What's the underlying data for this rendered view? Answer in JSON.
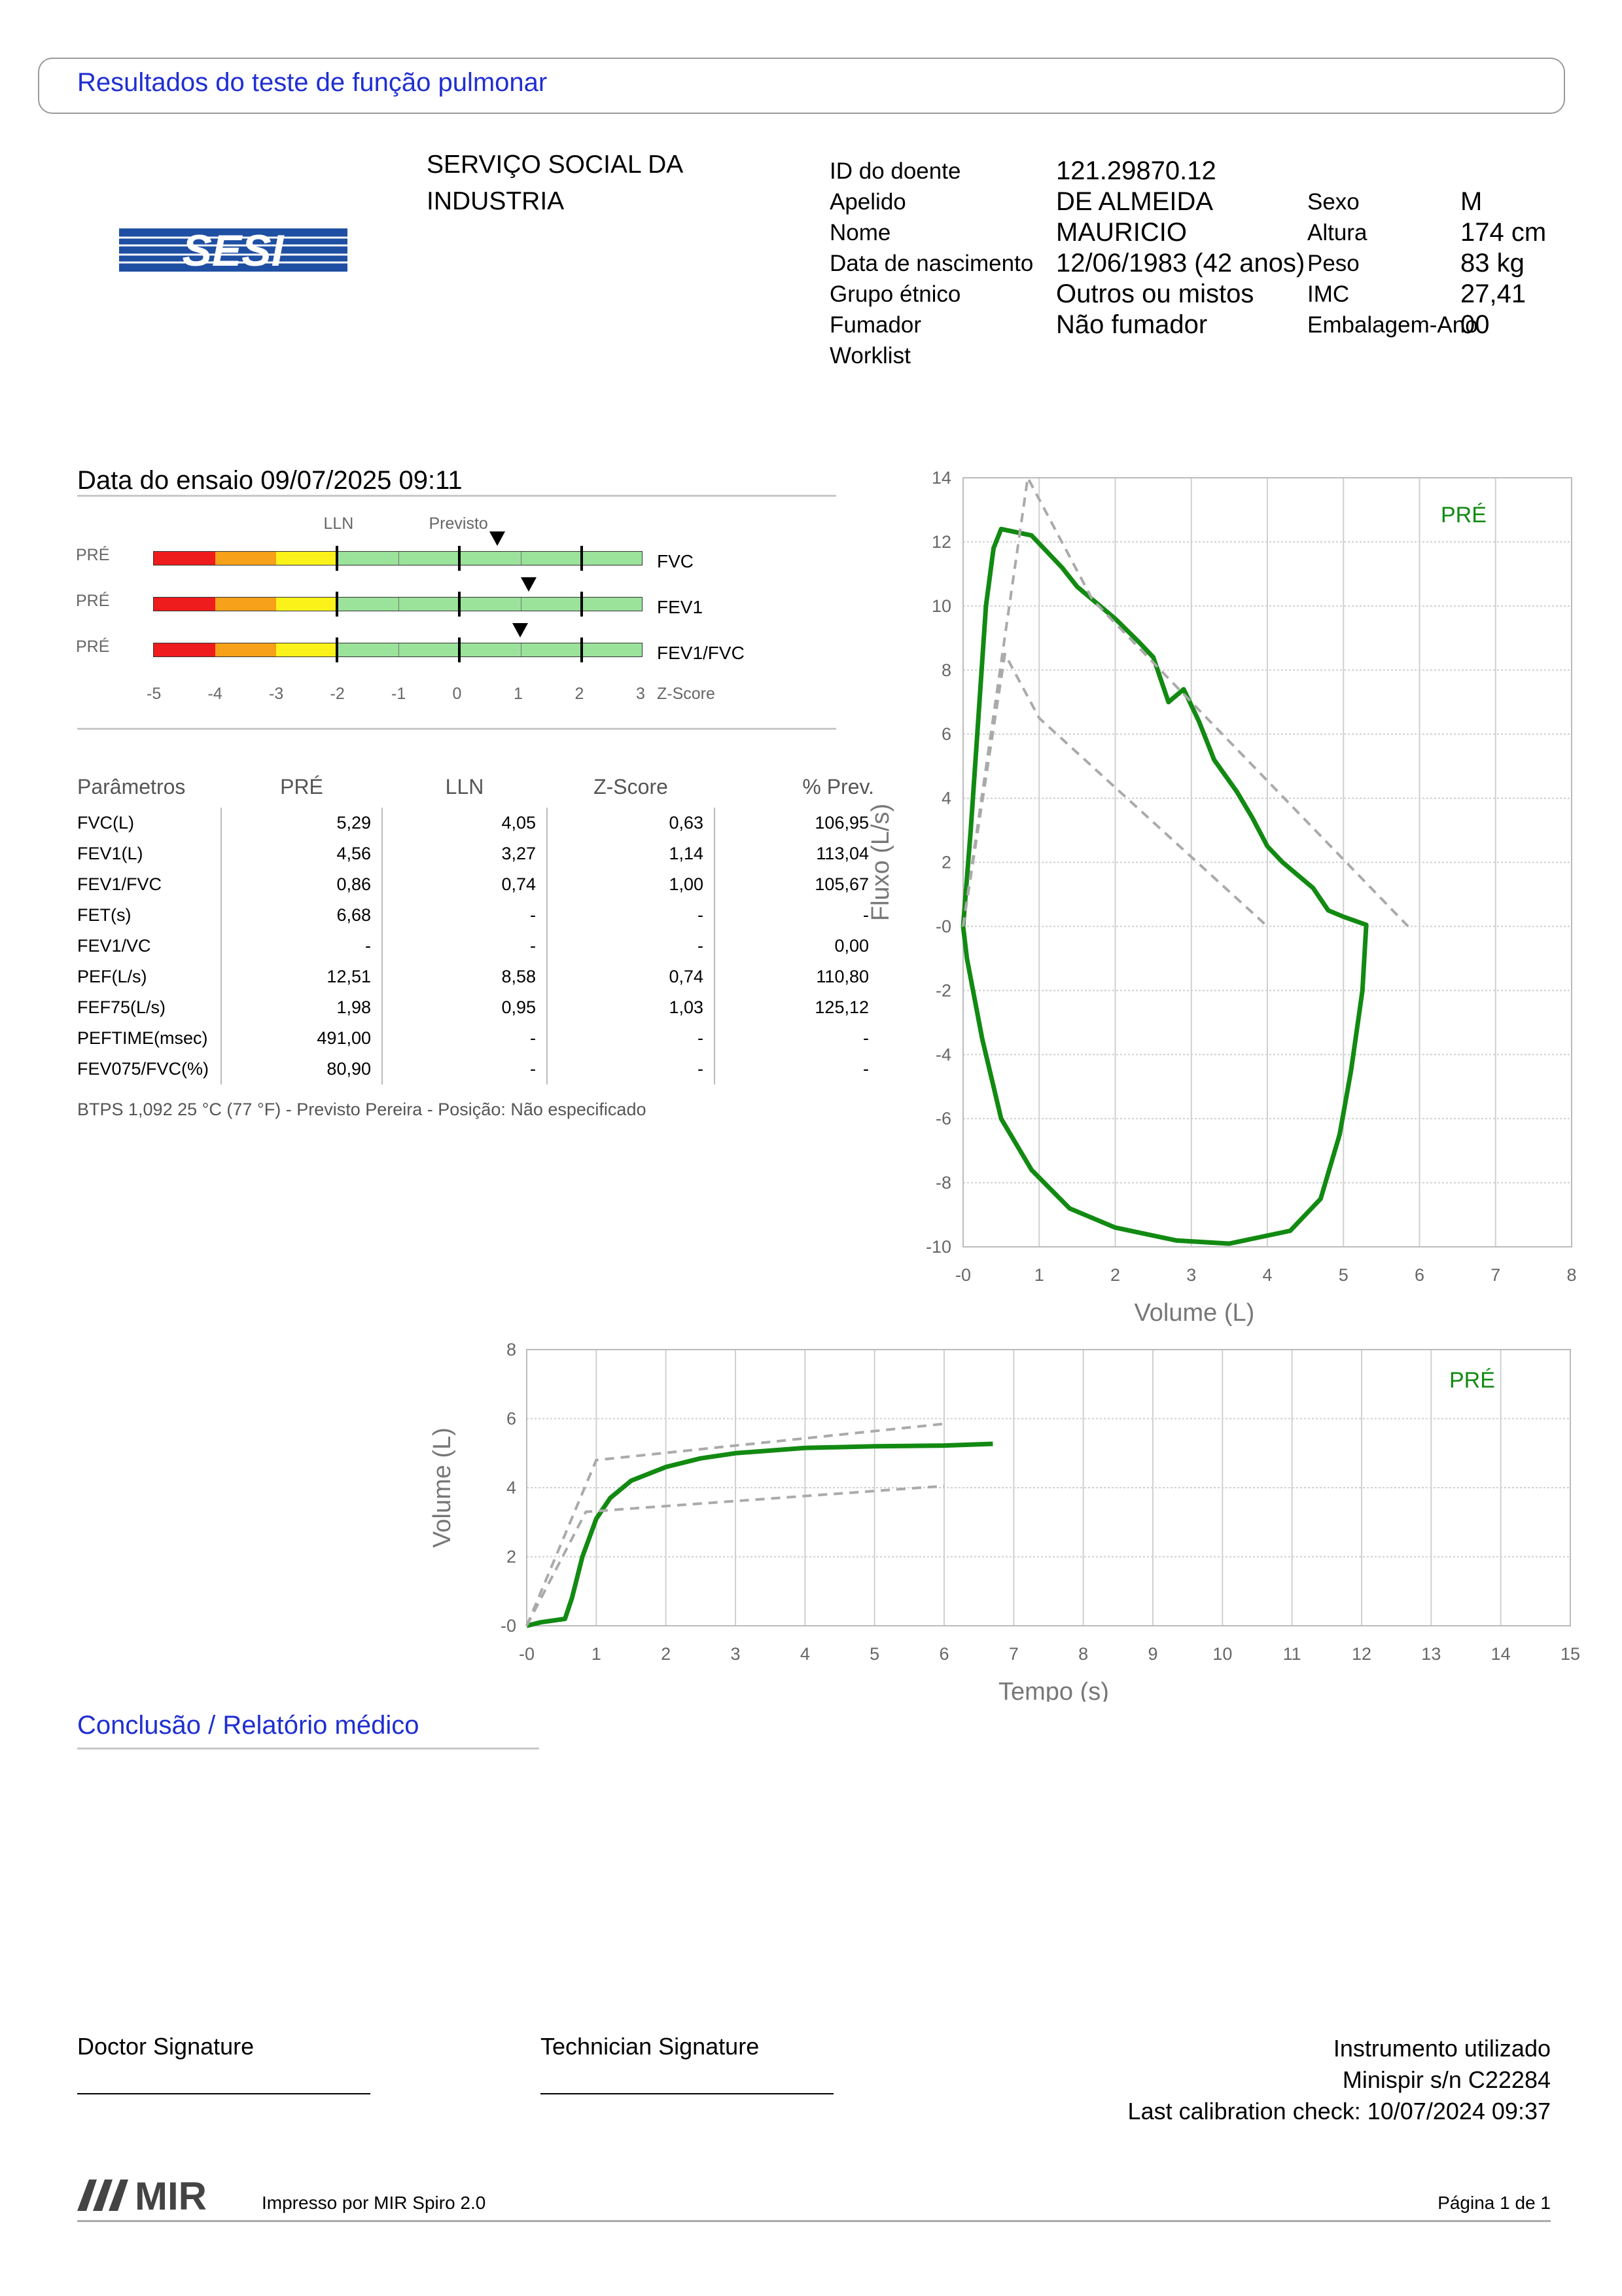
{
  "header": {
    "title": "Resultados do teste de função pulmonar"
  },
  "institution": {
    "name_line1": "SERVIÇO SOCIAL DA",
    "name_line2": "INDUSTRIA",
    "logo_text": "SESI",
    "logo_color": "#1e4fa3"
  },
  "patient": {
    "left": [
      {
        "label": "ID do doente",
        "value": "121.29870.12"
      },
      {
        "label": "Apelido",
        "value": "DE ALMEIDA"
      },
      {
        "label": "Nome",
        "value": "MAURICIO"
      },
      {
        "label": "Data de nascimento",
        "value": "12/06/1983 (42 anos)"
      },
      {
        "label": "Grupo étnico",
        "value": "Outros ou mistos"
      },
      {
        "label": "Fumador",
        "value": "Não fumador"
      },
      {
        "label": "Worklist",
        "value": ""
      }
    ],
    "right": [
      {
        "label": "Sexo",
        "value": "M"
      },
      {
        "label": "Altura",
        "value": "174 cm"
      },
      {
        "label": "Peso",
        "value": "83 kg"
      },
      {
        "label": "IMC",
        "value": "27,41"
      },
      {
        "label": "Embalagem-Ano",
        "value": "00"
      }
    ]
  },
  "test": {
    "date_line": "Data do ensaio 09/07/2025 09:11",
    "zscore": {
      "lln_label": "LLN",
      "pred_label": "Previsto",
      "axis_label": "Z-Score",
      "ticks": [
        "-5",
        "-4",
        "-3",
        "-2",
        "-1",
        "0",
        "1",
        "2",
        "3"
      ],
      "rows": [
        {
          "phase": "PRÉ",
          "name": "FVC",
          "z": 0.63
        },
        {
          "phase": "PRÉ",
          "name": "FEV1",
          "z": 1.14
        },
        {
          "phase": "PRÉ",
          "name": "FEV1/FVC",
          "z": 1.0
        }
      ],
      "colors": {
        "red": "#ee1c1c",
        "orange": "#f7a01a",
        "yellow": "#fbf21a",
        "green": "#9be29b"
      }
    },
    "table": {
      "headers": [
        "Parâmetros",
        "PRÉ",
        "LLN",
        "Z-Score",
        "% Prev."
      ],
      "rows": [
        [
          "FVC(L)",
          "5,29",
          "4,05",
          "0,63",
          "106,95"
        ],
        [
          "FEV1(L)",
          "4,56",
          "3,27",
          "1,14",
          "113,04"
        ],
        [
          "FEV1/FVC",
          "0,86",
          "0,74",
          "1,00",
          "105,67"
        ],
        [
          "FET(s)",
          "6,68",
          "-",
          "-",
          "-"
        ],
        [
          "FEV1/VC",
          "-",
          "-",
          "-",
          "0,00"
        ],
        [
          "PEF(L/s)",
          "12,51",
          "8,58",
          "0,74",
          "110,80"
        ],
        [
          "FEF75(L/s)",
          "1,98",
          "0,95",
          "1,03",
          "125,12"
        ],
        [
          "PEFTIME(msec)",
          "491,00",
          "-",
          "-",
          "-"
        ],
        [
          "FEV075/FVC(%)",
          "80,90",
          "-",
          "-",
          "-"
        ]
      ]
    },
    "btps": "BTPS 1,092 25 °C (77 °F) - Previsto Pereira - Posição: Não especificado"
  },
  "chart_data": [
    {
      "type": "line",
      "xlabel": "Volume (L)",
      "ylabel": "Fluxo (L/s)",
      "xlim": [
        0,
        8
      ],
      "ylim": [
        -10,
        14
      ],
      "xticks": [
        "-0",
        "1",
        "2",
        "3",
        "4",
        "5",
        "6",
        "7",
        "8"
      ],
      "yticks": [
        "14",
        "12",
        "10",
        "8",
        "6",
        "4",
        "2",
        "-0",
        "-2",
        "-4",
        "-6",
        "-8",
        "-10"
      ],
      "grid": true,
      "annotation": "PRÉ",
      "series": [
        {
          "color": "#128a12",
          "points": [
            [
              0,
              0
            ],
            [
              0.1,
              3
            ],
            [
              0.2,
              6.5
            ],
            [
              0.3,
              10
            ],
            [
              0.4,
              11.8
            ],
            [
              0.5,
              12.4
            ],
            [
              0.7,
              12.3
            ],
            [
              0.9,
              12.2
            ],
            [
              1.1,
              11.7
            ],
            [
              1.3,
              11.2
            ],
            [
              1.5,
              10.6
            ],
            [
              1.7,
              10.2
            ],
            [
              2.0,
              9.6
            ],
            [
              2.3,
              8.9
            ],
            [
              2.5,
              8.4
            ],
            [
              2.7,
              7.0
            ],
            [
              2.9,
              7.4
            ],
            [
              3.1,
              6.4
            ],
            [
              3.3,
              5.2
            ],
            [
              3.6,
              4.2
            ],
            [
              3.8,
              3.4
            ],
            [
              4.0,
              2.5
            ],
            [
              4.2,
              2.0
            ],
            [
              4.4,
              1.6
            ],
            [
              4.6,
              1.2
            ],
            [
              4.8,
              0.5
            ],
            [
              5.0,
              0.3
            ],
            [
              5.3,
              0.05
            ],
            [
              5.25,
              -2.0
            ],
            [
              5.1,
              -4.5
            ],
            [
              4.95,
              -6.5
            ],
            [
              4.7,
              -8.5
            ],
            [
              4.3,
              -9.5
            ],
            [
              3.5,
              -9.9
            ],
            [
              2.8,
              -9.8
            ],
            [
              2.0,
              -9.4
            ],
            [
              1.4,
              -8.8
            ],
            [
              0.9,
              -7.6
            ],
            [
              0.5,
              -6.0
            ],
            [
              0.25,
              -3.5
            ],
            [
              0.05,
              -1.0
            ],
            [
              0,
              0
            ]
          ]
        },
        {
          "color": "#aaaaaa",
          "points": [
            [
              0,
              0
            ],
            [
              0.85,
              14
            ],
            [
              1.7,
              10.2
            ],
            [
              3.0,
              7.0
            ],
            [
              5.85,
              0
            ]
          ]
        },
        {
          "color": "#aaaaaa",
          "points": [
            [
              0,
              0
            ],
            [
              0.55,
              8.5
            ],
            [
              1.0,
              6.5
            ],
            [
              4.0,
              0
            ]
          ]
        }
      ]
    },
    {
      "type": "line",
      "xlabel": "Tempo (s)",
      "ylabel": "Volume (L)",
      "xlim": [
        0,
        15
      ],
      "ylim": [
        0,
        8
      ],
      "xticks": [
        "-0",
        "1",
        "2",
        "3",
        "4",
        "5",
        "6",
        "7",
        "8",
        "9",
        "10",
        "11",
        "12",
        "13",
        "14",
        "15"
      ],
      "yticks": [
        "8",
        "6",
        "4",
        "2",
        "-0"
      ],
      "grid": true,
      "annotation": "PRÉ",
      "series": [
        {
          "color": "#128a12",
          "points": [
            [
              0,
              0
            ],
            [
              0.2,
              0.1
            ],
            [
              0.55,
              0.2
            ],
            [
              0.65,
              0.8
            ],
            [
              0.8,
              2.0
            ],
            [
              1.0,
              3.1
            ],
            [
              1.2,
              3.7
            ],
            [
              1.5,
              4.2
            ],
            [
              2.0,
              4.6
            ],
            [
              2.5,
              4.85
            ],
            [
              3,
              5.0
            ],
            [
              4,
              5.15
            ],
            [
              5,
              5.2
            ],
            [
              6,
              5.22
            ],
            [
              6.7,
              5.27
            ]
          ]
        },
        {
          "color": "#aaaaaa",
          "points": [
            [
              0,
              0
            ],
            [
              1.0,
              4.8
            ],
            [
              6.0,
              5.85
            ]
          ]
        },
        {
          "color": "#aaaaaa",
          "points": [
            [
              0,
              0
            ],
            [
              0.85,
              3.3
            ],
            [
              6.0,
              4.05
            ]
          ]
        }
      ]
    }
  ],
  "conclusion": {
    "title": "Conclusão / Relatório médico"
  },
  "signatures": {
    "doctor": "Doctor Signature",
    "technician": "Technician Signature"
  },
  "instrument": {
    "line1": "Instrumento utilizado",
    "line2": "Minispir s/n C22284",
    "line3": "Last calibration check: 10/07/2024 09:37"
  },
  "footer": {
    "logo_text": "MIR",
    "printed_by": "Impresso por MIR Spiro 2.0",
    "page": "Página 1 de 1"
  }
}
